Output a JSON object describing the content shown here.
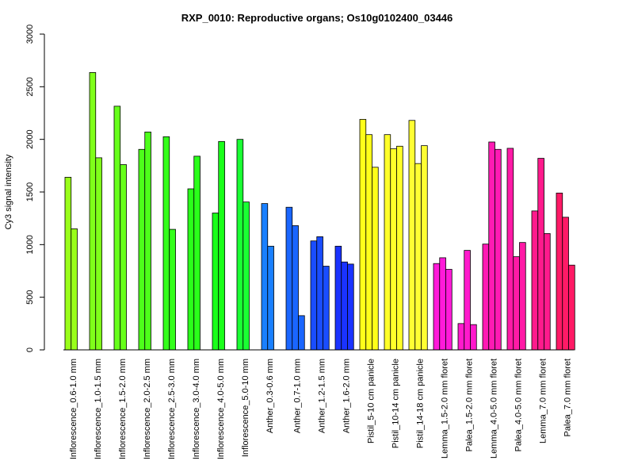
{
  "chart_data": {
    "type": "bar",
    "title": "RXP_0010: Reproductive organs; Os10g0102400_03446",
    "xlabel": "",
    "ylabel": "Cy3 signal intensity",
    "ylim": [
      0,
      3000
    ],
    "yticks": [
      0,
      500,
      1000,
      1500,
      2000,
      2500,
      3000
    ],
    "grid": false,
    "groups": [
      {
        "label": "Inflorescence_0.6-1.0 mm",
        "color": "#99ff1a",
        "values": [
          1640,
          1150
        ]
      },
      {
        "label": "Inflorescence_1.0-1.5 mm",
        "color": "#80ff1a",
        "values": [
          2635,
          1825
        ]
      },
      {
        "label": "Inflorescence_1.5-2.0 mm",
        "color": "#66ff1a",
        "values": [
          2315,
          1760
        ]
      },
      {
        "label": "Inflorescence_2.0-2.5 mm",
        "color": "#4dff1a",
        "values": [
          1905,
          2070
        ]
      },
      {
        "label": "Inflorescence_2.5-3.0 mm",
        "color": "#33ff1a",
        "values": [
          2025,
          1145
        ]
      },
      {
        "label": "Inflorescence_3.0-4.0 mm",
        "color": "#2aff1a",
        "values": [
          1530,
          1840
        ]
      },
      {
        "label": "Inflorescence_4.0-5.0 mm",
        "color": "#1aff1a",
        "values": [
          1300,
          1980
        ]
      },
      {
        "label": "Inflorescence_5.0-10 mm",
        "color": "#1aff33",
        "values": [
          2000,
          1405
        ]
      },
      {
        "label": "Anther_0.3-0.6 mm",
        "color": "#1a80ff",
        "values": [
          1390,
          985
        ]
      },
      {
        "label": "Anther_0.7-1.0 mm",
        "color": "#1a66ff",
        "values": [
          1355,
          1180,
          325
        ]
      },
      {
        "label": "Anther_1.2-1.5 mm",
        "color": "#1a4dff",
        "values": [
          1035,
          1075,
          795
        ]
      },
      {
        "label": "Anther_1.6-2.0 mm",
        "color": "#1a33ff",
        "values": [
          985,
          835,
          815
        ]
      },
      {
        "label": "Pistil_5-10 cm panicle",
        "color": "#ffff1a",
        "values": [
          2190,
          2045,
          1735
        ]
      },
      {
        "label": "Pistil_10-14 cm panicle",
        "color": "#ffff2a",
        "values": [
          2045,
          1910,
          1935
        ]
      },
      {
        "label": "Pistil_14-18 cm panicle",
        "color": "#ffff33",
        "values": [
          2180,
          1770,
          1940
        ]
      },
      {
        "label": "Lemma_1.5-2.0 mm floret",
        "color": "#ff1ad9",
        "values": [
          820,
          875,
          765
        ]
      },
      {
        "label": "Palea_1.5-2.0 mm floret",
        "color": "#ff1acc",
        "values": [
          250,
          945,
          240
        ]
      },
      {
        "label": "Lemma_4.0-5.0 mm floret",
        "color": "#ff1ab3",
        "values": [
          1005,
          1975,
          1905
        ]
      },
      {
        "label": "Palea_4.0-5.0 mm floret",
        "color": "#ff1aa6",
        "values": [
          1915,
          885,
          1020
        ]
      },
      {
        "label": "Lemma_7.0 mm floret",
        "color": "#ff1a8c",
        "values": [
          1320,
          1820,
          1105
        ]
      },
      {
        "label": "Palea_7.0 mm floret",
        "color": "#ff1a66",
        "values": [
          1490,
          1260,
          805
        ]
      }
    ]
  }
}
